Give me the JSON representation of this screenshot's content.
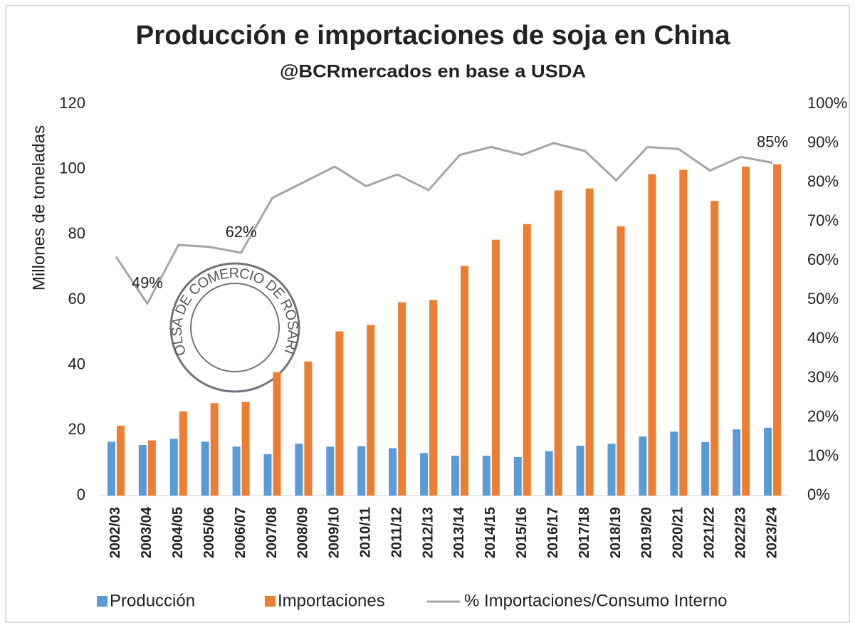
{
  "chart_data": {
    "type": "bar_line",
    "title": "Producción e importaciones de soja en China",
    "subtitle": "@BCRmercados en base a USDA",
    "watermark": "BOLSA DE COMERCIO DE ROSARIO",
    "y_label": "Millones de toneladas",
    "categories": [
      "2002/03",
      "2003/04",
      "2004/05",
      "2005/06",
      "2006/07",
      "2007/08",
      "2008/09",
      "2009/10",
      "2010/11",
      "2011/12",
      "2012/13",
      "2013/14",
      "2014/15",
      "2015/16",
      "2016/17",
      "2017/18",
      "2018/19",
      "2019/20",
      "2020/21",
      "2021/22",
      "2022/23",
      "2023/24"
    ],
    "series": [
      {
        "name": "Producción",
        "type": "bar",
        "color": "#5b9bd5",
        "values": [
          16.5,
          15.5,
          17.4,
          16.5,
          15.0,
          12.7,
          15.9,
          15.0,
          15.1,
          14.5,
          13.0,
          12.2,
          12.2,
          11.8,
          13.6,
          15.3,
          15.9,
          18.1,
          19.6,
          16.4,
          20.3,
          20.8
        ]
      },
      {
        "name": "Importaciones",
        "type": "bar",
        "color": "#ed7d31",
        "values": [
          21.4,
          16.9,
          25.8,
          28.3,
          28.7,
          37.8,
          41.1,
          50.3,
          52.3,
          59.2,
          59.9,
          70.4,
          78.4,
          83.2,
          93.5,
          94.1,
          82.5,
          98.5,
          99.8,
          90.3,
          100.8,
          101.5
        ]
      },
      {
        "name": "% Importaciones/Consumo Interno",
        "type": "line",
        "axis": "y2",
        "color": "#a5a5a5",
        "values": [
          61,
          49,
          64,
          63.5,
          62,
          76,
          80,
          84,
          79,
          82,
          78,
          87,
          89,
          87,
          90,
          88,
          80.5,
          89,
          88.5,
          83,
          86.5,
          85
        ],
        "value_labels": [
          null,
          "49%",
          null,
          null,
          "62%",
          null,
          null,
          null,
          null,
          null,
          null,
          null,
          null,
          null,
          null,
          null,
          null,
          null,
          null,
          null,
          null,
          "85%"
        ]
      }
    ],
    "ylim": [
      0,
      120
    ],
    "yticks": [
      0,
      20,
      40,
      60,
      80,
      100,
      120
    ],
    "y2lim": [
      0,
      100
    ],
    "y2ticks": [
      {
        "value": 0,
        "label": "0%"
      },
      {
        "value": 10,
        "label": "10%"
      },
      {
        "value": 20,
        "label": "20%"
      },
      {
        "value": 30,
        "label": "30%"
      },
      {
        "value": 40,
        "label": "40%"
      },
      {
        "value": 50,
        "label": "50%"
      },
      {
        "value": 60,
        "label": "60%"
      },
      {
        "value": 70,
        "label": "70%"
      },
      {
        "value": 80,
        "label": "80%"
      },
      {
        "value": 90,
        "label": "90%"
      },
      {
        "value": 100,
        "label": "100%"
      }
    ],
    "grid": false,
    "legend": "bottom"
  }
}
